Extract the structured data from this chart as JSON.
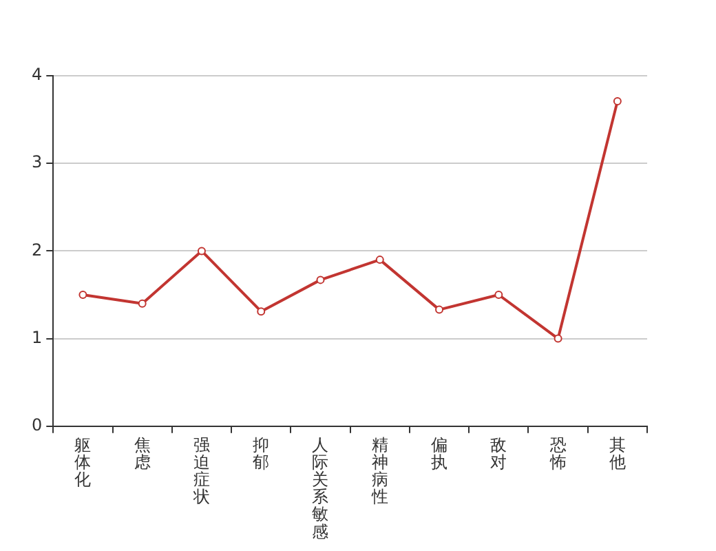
{
  "chart_data": {
    "type": "line",
    "categories": [
      "躯体化",
      "焦虑",
      "强迫症状",
      "抑郁",
      "人际关系敏感",
      "精神病性",
      "偏执",
      "敌对",
      "恐怖",
      "其他"
    ],
    "series": [
      {
        "color": "#c23531",
        "values": [
          1.5,
          1.4,
          2.0,
          1.31,
          1.67,
          1.9,
          1.33,
          1.5,
          1.0,
          3.71
        ]
      }
    ],
    "ylim": [
      0,
      4
    ],
    "yticks": [
      0,
      1,
      2,
      3,
      4
    ],
    "grid": "y",
    "legend": false,
    "marker": "circle",
    "line_style": "solid"
  }
}
